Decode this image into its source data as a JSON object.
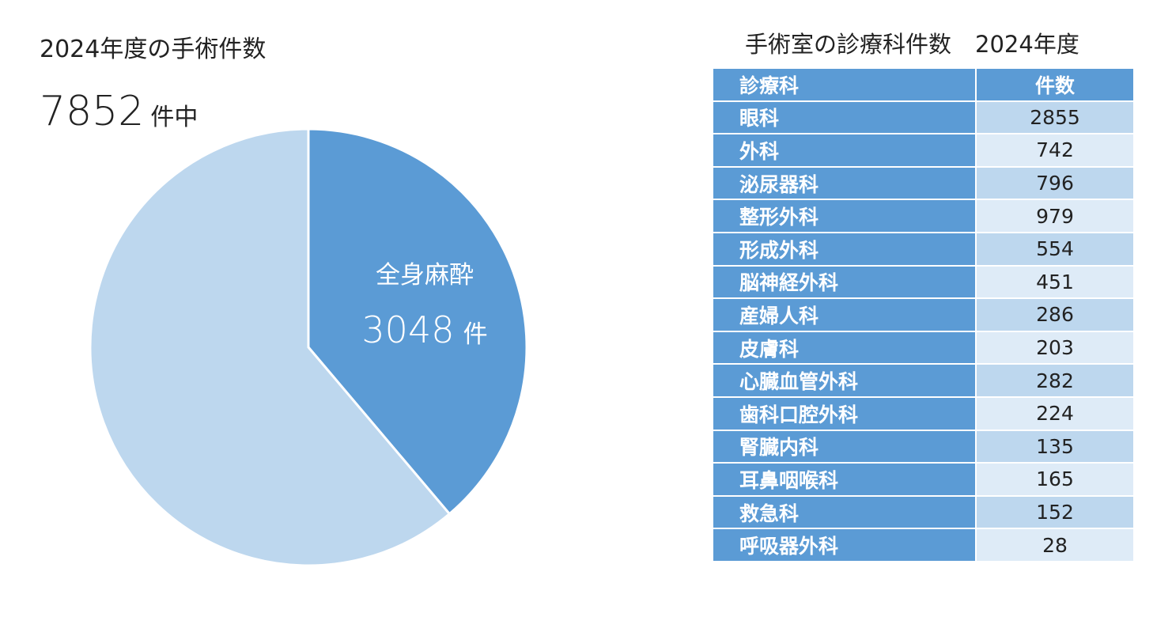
{
  "left_title": "2024年度の手術件数",
  "total": {
    "value": "7852",
    "suffix": "件中"
  },
  "pie_label": {
    "name": "全身麻酔",
    "value": "3048",
    "unit": "件"
  },
  "colors": {
    "dark_blue": "#5b9bd5",
    "light_blue": "#bdd7ee",
    "pale_blue": "#deebf7"
  },
  "chart_data": [
    {
      "type": "pie",
      "total": 7852,
      "slices": [
        {
          "label": "全身麻酔",
          "value": 3048,
          "color": "#5b9bd5"
        },
        {
          "label": "",
          "value": 4804,
          "color": "#bdd7ee"
        }
      ]
    },
    {
      "type": "table",
      "title": "手術室の診療科件数",
      "subtitle": "2024年度",
      "columns": [
        "診療科",
        "件数"
      ],
      "rows": [
        {
          "dept": "眼科",
          "count": "2855"
        },
        {
          "dept": "外科",
          "count": "742"
        },
        {
          "dept": "泌尿器科",
          "count": "796"
        },
        {
          "dept": "整形外科",
          "count": "979"
        },
        {
          "dept": "形成外科",
          "count": "554"
        },
        {
          "dept": "脳神経外科",
          "count": "451"
        },
        {
          "dept": "産婦人科",
          "count": "286"
        },
        {
          "dept": "皮膚科",
          "count": "203"
        },
        {
          "dept": "心臓血管外科",
          "count": "282"
        },
        {
          "dept": "歯科口腔外科",
          "count": "224"
        },
        {
          "dept": "腎臓内科",
          "count": "135"
        },
        {
          "dept": "耳鼻咽喉科",
          "count": "165"
        },
        {
          "dept": "救急科",
          "count": "152"
        },
        {
          "dept": "呼吸器外科",
          "count": "28"
        }
      ]
    }
  ]
}
